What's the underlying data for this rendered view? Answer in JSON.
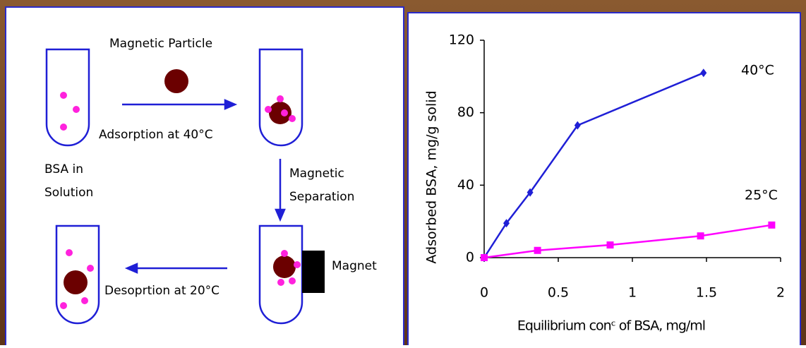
{
  "diagram": {
    "particle_label": "Magnetic Particle",
    "adsorption_label": "Adsorption at 40°C",
    "bsa_label_1": "BSA in",
    "bsa_label_2": "Solution",
    "separation_label_1": "Magnetic",
    "separation_label_2": "Separation",
    "magnet_label": "Magnet",
    "desorption_label": "Desoprtion at 20°C"
  },
  "chart_data": {
    "type": "line",
    "x_label": "Equilibrium conᶜ of BSA, mg/ml",
    "y_label": "Adsorbed BSA, mg/g solid",
    "xlim": [
      0,
      2
    ],
    "ylim": [
      0,
      120
    ],
    "xticks": [
      0,
      0.5,
      1,
      1.5,
      2
    ],
    "yticks": [
      0,
      40,
      80,
      120
    ],
    "series": [
      {
        "name": "40°C",
        "color": "#1f1fd6",
        "marker": "diamond",
        "x": [
          0,
          0.15,
          0.31,
          0.63,
          1.48
        ],
        "values": [
          0,
          19,
          36,
          73,
          102
        ]
      },
      {
        "name": "25°C",
        "color": "#ff00ff",
        "marker": "square",
        "x": [
          0,
          0.36,
          0.85,
          1.46,
          1.94
        ],
        "values": [
          0,
          4,
          7,
          12,
          18
        ]
      }
    ]
  }
}
